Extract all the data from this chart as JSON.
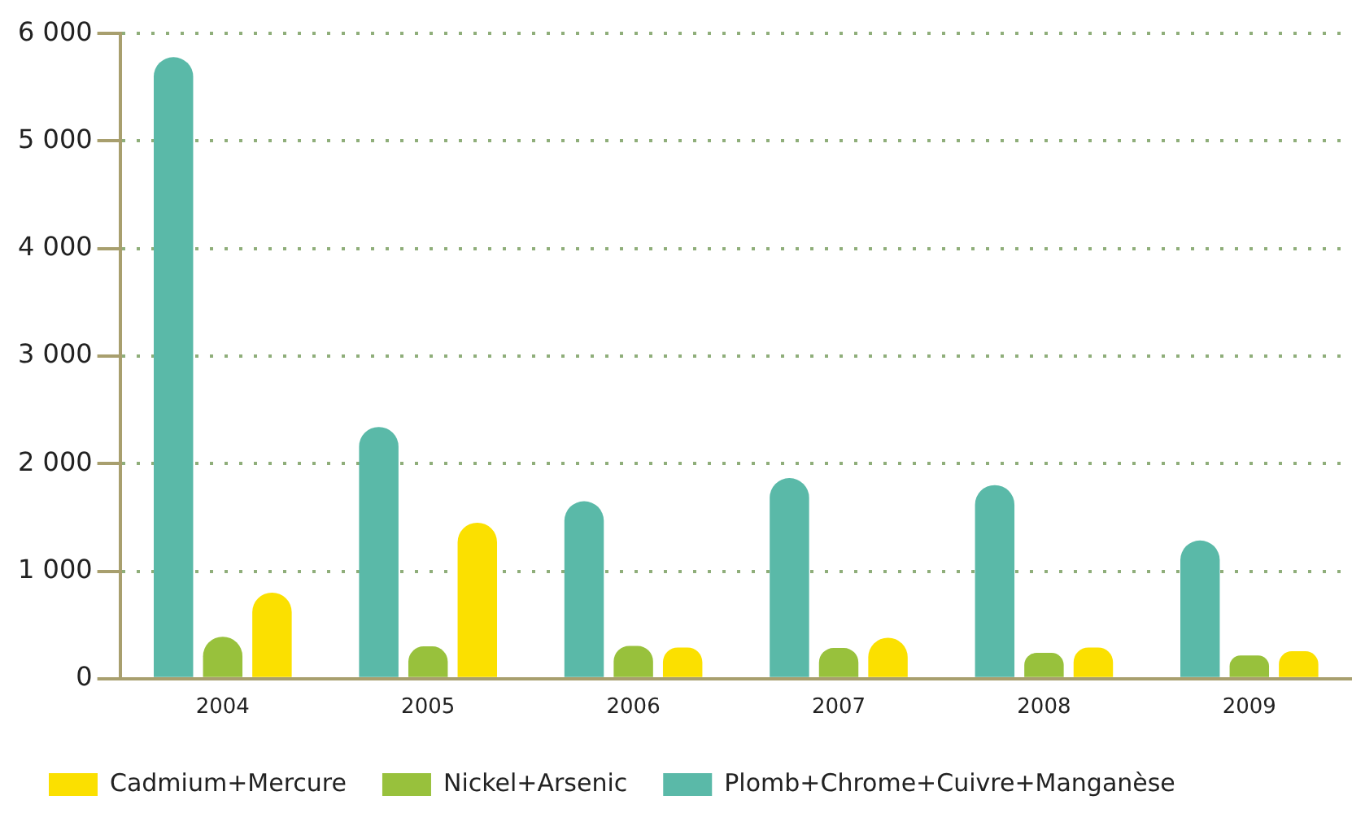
{
  "chart_data": {
    "type": "bar",
    "categories": [
      "2004",
      "2005",
      "2006",
      "2007",
      "2008",
      "2009"
    ],
    "series": [
      {
        "name": "Plomb+Chrome+Cuivre+Manganèse",
        "color": "#5ab9a8",
        "values": [
          5780,
          2340,
          1650,
          1865,
          1800,
          1285
        ]
      },
      {
        "name": "Nickel+Arsenic",
        "color": "#98c13c",
        "values": [
          390,
          300,
          305,
          285,
          240,
          215
        ]
      },
      {
        "name": "Cadmium+Mercure",
        "color": "#fbe000",
        "values": [
          800,
          1450,
          290,
          380,
          290,
          255
        ]
      }
    ],
    "ylim": [
      0,
      6000
    ],
    "yticks": [
      {
        "value": 0,
        "label": "0"
      },
      {
        "value": 1000,
        "label": "1 000"
      },
      {
        "value": 2000,
        "label": "2 000"
      },
      {
        "value": 3000,
        "label": "3 000"
      },
      {
        "value": 4000,
        "label": "4 000"
      },
      {
        "value": 5000,
        "label": "5 000"
      },
      {
        "value": 6000,
        "label": "6 000"
      }
    ],
    "grid": "y",
    "legend": "bottom left"
  }
}
